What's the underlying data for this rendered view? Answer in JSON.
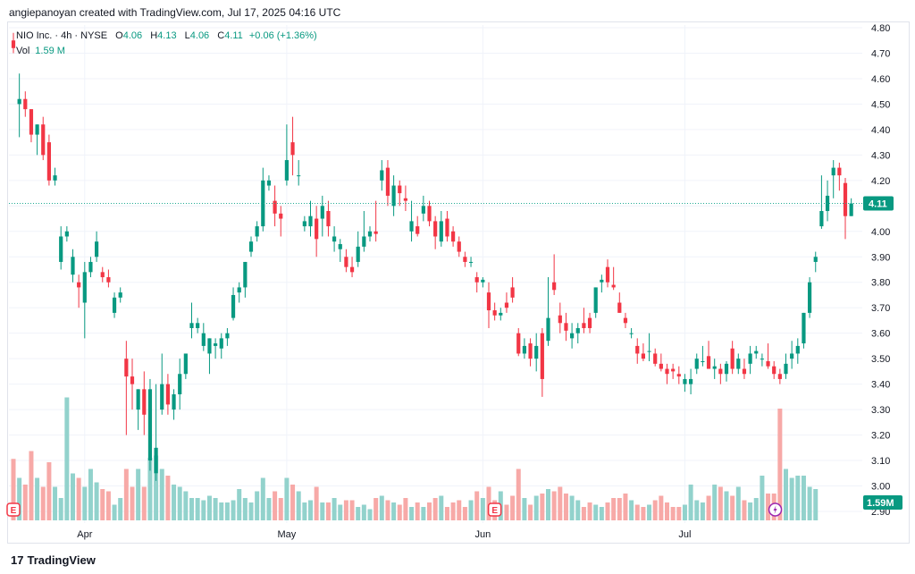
{
  "header": {
    "caption": "angiepanoyan created with TradingView.com, Jul 17, 2025 04:16 UTC"
  },
  "legend": {
    "symbol": "NIO Inc. · 4h · NYSE",
    "o_label": "O",
    "o_value": "4.06",
    "h_label": "H",
    "h_value": "4.13",
    "l_label": "L",
    "l_value": "4.06",
    "c_label": "C",
    "c_value": "4.11",
    "change": "+0.06 (+1.36%)",
    "vol_label": "Vol",
    "vol_value": "1.59 M"
  },
  "footer": {
    "brand": "TradingView",
    "logo": "17"
  },
  "colors": {
    "up": "#089981",
    "down": "#f23645",
    "vol_up": "#92d2cc",
    "vol_down": "#f7a9a7",
    "grid": "#f0f3fa",
    "axis_text": "#131722",
    "last_price_line": "#22ab94",
    "earnings": "#f23645",
    "bolt": "#9c27b0"
  },
  "chart_data": {
    "type": "candlestick",
    "symbol": "NIO",
    "timeframe": "4h",
    "exchange": "NYSE",
    "y_range": [
      2.9,
      4.8
    ],
    "y_ticks": [
      "4.80",
      "4.70",
      "4.60",
      "4.50",
      "4.40",
      "4.30",
      "4.20",
      "4.10",
      "4.00",
      "3.90",
      "3.80",
      "3.70",
      "3.60",
      "3.50",
      "3.40",
      "3.30",
      "3.20",
      "3.10",
      "3.00",
      "2.90"
    ],
    "x_labels": [
      {
        "label": "Apr",
        "index": 12
      },
      {
        "label": "May",
        "index": 46
      },
      {
        "label": "Jun",
        "index": 79
      },
      {
        "label": "Jul",
        "index": 113
      }
    ],
    "last_price": "4.11",
    "last_volume": "1.59M",
    "earnings_markers": [
      0,
      81
    ],
    "bolt_marker": 127,
    "candles": [
      [
        4.75,
        4.78,
        4.7,
        4.72
      ],
      [
        4.5,
        4.62,
        4.37,
        4.52
      ],
      [
        4.52,
        4.55,
        4.45,
        4.48
      ],
      [
        4.48,
        4.48,
        4.35,
        4.38
      ],
      [
        4.38,
        4.42,
        4.3,
        4.42
      ],
      [
        4.42,
        4.45,
        4.28,
        4.3
      ],
      [
        4.35,
        4.38,
        4.18,
        4.2
      ],
      [
        4.2,
        4.25,
        4.18,
        4.22
      ],
      [
        3.88,
        4.02,
        3.85,
        3.98
      ],
      [
        3.98,
        4.02,
        3.96,
        4.0
      ],
      [
        3.83,
        3.93,
        3.8,
        3.9
      ],
      [
        3.8,
        3.83,
        3.7,
        3.78
      ],
      [
        3.72,
        3.88,
        3.58,
        3.84
      ],
      [
        3.84,
        3.9,
        3.82,
        3.88
      ],
      [
        3.9,
        4.0,
        3.88,
        3.96
      ],
      [
        3.84,
        3.86,
        3.8,
        3.82
      ],
      [
        3.82,
        3.85,
        3.78,
        3.8
      ],
      [
        3.68,
        3.76,
        3.66,
        3.74
      ],
      [
        3.74,
        3.78,
        3.72,
        3.76
      ],
      [
        3.5,
        3.57,
        3.2,
        3.43
      ],
      [
        3.43,
        3.5,
        3.3,
        3.4
      ],
      [
        3.3,
        3.38,
        3.22,
        3.38
      ],
      [
        3.38,
        3.45,
        3.2,
        3.28
      ],
      [
        3.1,
        3.42,
        3.06,
        3.38
      ],
      [
        3.05,
        3.4,
        3.02,
        3.15
      ],
      [
        3.3,
        3.52,
        3.28,
        3.4
      ],
      [
        3.4,
        3.44,
        3.28,
        3.32
      ],
      [
        3.3,
        3.38,
        3.26,
        3.36
      ],
      [
        3.36,
        3.5,
        3.3,
        3.44
      ],
      [
        3.44,
        3.52,
        3.42,
        3.52
      ],
      [
        3.62,
        3.72,
        3.58,
        3.64
      ],
      [
        3.62,
        3.66,
        3.6,
        3.64
      ],
      [
        3.55,
        3.64,
        3.53,
        3.6
      ],
      [
        3.52,
        3.58,
        3.44,
        3.58
      ],
      [
        3.55,
        3.58,
        3.5,
        3.56
      ],
      [
        3.54,
        3.6,
        3.5,
        3.58
      ],
      [
        3.58,
        3.62,
        3.55,
        3.6
      ],
      [
        3.66,
        3.78,
        3.65,
        3.75
      ],
      [
        3.76,
        3.8,
        3.72,
        3.78
      ],
      [
        3.78,
        3.88,
        3.74,
        3.88
      ],
      [
        3.92,
        3.98,
        3.9,
        3.96
      ],
      [
        3.98,
        4.04,
        3.96,
        4.02
      ],
      [
        4.02,
        4.25,
        4.0,
        4.2
      ],
      [
        4.18,
        4.22,
        4.16,
        4.2
      ],
      [
        4.12,
        4.18,
        4.02,
        4.07
      ],
      [
        4.07,
        4.1,
        3.98,
        4.05
      ],
      [
        4.2,
        4.42,
        4.18,
        4.28
      ],
      [
        4.35,
        4.45,
        4.22,
        4.3
      ],
      [
        4.22,
        4.28,
        4.18,
        4.22
      ],
      [
        4.02,
        4.06,
        4.0,
        4.04
      ],
      [
        4.02,
        4.12,
        3.98,
        4.06
      ],
      [
        4.05,
        4.1,
        3.9,
        3.97
      ],
      [
        4.05,
        4.14,
        3.98,
        4.1
      ],
      [
        4.08,
        4.12,
        3.98,
        4.02
      ],
      [
        3.96,
        4.02,
        3.92,
        3.98
      ],
      [
        3.93,
        3.97,
        3.88,
        3.95
      ],
      [
        3.9,
        3.93,
        3.84,
        3.86
      ],
      [
        3.86,
        3.9,
        3.82,
        3.84
      ],
      [
        3.88,
        4.0,
        3.86,
        3.94
      ],
      [
        3.94,
        4.08,
        3.92,
        3.98
      ],
      [
        3.98,
        4.02,
        3.96,
        4.0
      ],
      [
        4.0,
        4.12,
        3.96,
        3.99
      ],
      [
        4.2,
        4.28,
        4.16,
        4.24
      ],
      [
        4.25,
        4.28,
        4.1,
        4.14
      ],
      [
        4.1,
        4.22,
        4.06,
        4.18
      ],
      [
        4.18,
        4.2,
        4.1,
        4.15
      ],
      [
        4.13,
        4.18,
        4.08,
        4.12
      ],
      [
        4.0,
        4.12,
        3.96,
        4.04
      ],
      [
        4.02,
        4.06,
        3.98,
        3.99
      ],
      [
        4.07,
        4.14,
        4.04,
        4.1
      ],
      [
        4.1,
        4.12,
        4.02,
        4.04
      ],
      [
        4.04,
        4.06,
        3.93,
        3.98
      ],
      [
        3.96,
        4.08,
        3.94,
        4.04
      ],
      [
        4.05,
        4.08,
        3.96,
        3.98
      ],
      [
        4.0,
        4.02,
        3.94,
        3.96
      ],
      [
        3.96,
        3.98,
        3.9,
        3.92
      ],
      [
        3.9,
        3.92,
        3.86,
        3.88
      ],
      [
        3.88,
        3.9,
        3.86,
        3.88
      ],
      [
        3.82,
        3.84,
        3.76,
        3.8
      ],
      [
        3.8,
        3.82,
        3.78,
        3.81
      ],
      [
        3.76,
        3.8,
        3.62,
        3.69
      ],
      [
        3.69,
        3.72,
        3.65,
        3.67
      ],
      [
        3.67,
        3.7,
        3.65,
        3.68
      ],
      [
        3.72,
        3.76,
        3.68,
        3.7
      ],
      [
        3.78,
        3.82,
        3.72,
        3.74
      ],
      [
        3.6,
        3.62,
        3.51,
        3.52
      ],
      [
        3.52,
        3.58,
        3.5,
        3.55
      ],
      [
        3.56,
        3.58,
        3.47,
        3.5
      ],
      [
        3.5,
        3.6,
        3.45,
        3.55
      ],
      [
        3.6,
        3.62,
        3.35,
        3.42
      ],
      [
        3.57,
        3.82,
        3.55,
        3.66
      ],
      [
        3.8,
        3.91,
        3.75,
        3.77
      ],
      [
        3.67,
        3.72,
        3.6,
        3.64
      ],
      [
        3.64,
        3.68,
        3.57,
        3.61
      ],
      [
        3.58,
        3.64,
        3.54,
        3.6
      ],
      [
        3.6,
        3.64,
        3.56,
        3.62
      ],
      [
        3.64,
        3.7,
        3.6,
        3.62
      ],
      [
        3.66,
        3.68,
        3.6,
        3.62
      ],
      [
        3.68,
        3.78,
        3.66,
        3.78
      ],
      [
        3.8,
        3.83,
        3.76,
        3.81
      ],
      [
        3.86,
        3.89,
        3.78,
        3.8
      ],
      [
        3.79,
        3.86,
        3.77,
        3.78
      ],
      [
        3.72,
        3.76,
        3.68,
        3.68
      ],
      [
        3.66,
        3.68,
        3.62,
        3.64
      ],
      [
        3.6,
        3.62,
        3.58,
        3.6
      ],
      [
        3.55,
        3.58,
        3.48,
        3.52
      ],
      [
        3.52,
        3.56,
        3.49,
        3.5
      ],
      [
        3.53,
        3.6,
        3.49,
        3.53
      ],
      [
        3.52,
        3.54,
        3.47,
        3.48
      ],
      [
        3.48,
        3.52,
        3.45,
        3.46
      ],
      [
        3.46,
        3.48,
        3.4,
        3.44
      ],
      [
        3.46,
        3.48,
        3.42,
        3.45
      ],
      [
        3.44,
        3.47,
        3.4,
        3.43
      ],
      [
        3.4,
        3.44,
        3.37,
        3.42
      ],
      [
        3.4,
        3.46,
        3.36,
        3.42
      ],
      [
        3.46,
        3.52,
        3.44,
        3.5
      ],
      [
        3.49,
        3.55,
        3.47,
        3.49
      ],
      [
        3.51,
        3.57,
        3.46,
        3.46
      ],
      [
        3.46,
        3.5,
        3.42,
        3.47
      ],
      [
        3.46,
        3.48,
        3.4,
        3.44
      ],
      [
        3.44,
        3.49,
        3.41,
        3.48
      ],
      [
        3.54,
        3.57,
        3.44,
        3.46
      ],
      [
        3.46,
        3.52,
        3.44,
        3.5
      ],
      [
        3.46,
        3.5,
        3.42,
        3.44
      ],
      [
        3.48,
        3.55,
        3.44,
        3.52
      ],
      [
        3.52,
        3.55,
        3.5,
        3.53
      ],
      [
        3.5,
        3.52,
        3.47,
        3.5
      ],
      [
        3.49,
        3.56,
        3.46,
        3.47
      ],
      [
        3.47,
        3.49,
        3.42,
        3.44
      ],
      [
        3.44,
        3.46,
        3.4,
        3.42
      ],
      [
        3.44,
        3.52,
        3.42,
        3.48
      ],
      [
        3.5,
        3.57,
        3.46,
        3.52
      ],
      [
        3.52,
        3.58,
        3.48,
        3.55
      ],
      [
        3.56,
        3.68,
        3.54,
        3.68
      ],
      [
        3.68,
        3.82,
        3.66,
        3.8
      ],
      [
        3.88,
        3.92,
        3.84,
        3.9
      ],
      [
        4.02,
        4.22,
        4.01,
        4.08
      ],
      [
        4.08,
        4.2,
        4.04,
        4.14
      ],
      [
        4.22,
        4.28,
        4.13,
        4.25
      ],
      [
        4.25,
        4.27,
        4.16,
        4.22
      ],
      [
        4.19,
        4.21,
        3.97,
        4.06
      ],
      [
        4.06,
        4.13,
        4.06,
        4.11
      ]
    ],
    "volumes": [
      0.55,
      0.38,
      0.32,
      0.62,
      0.38,
      0.3,
      0.52,
      0.3,
      0.2,
      1.1,
      0.42,
      0.38,
      0.3,
      0.46,
      0.34,
      0.28,
      0.26,
      0.14,
      0.2,
      0.46,
      0.3,
      0.46,
      0.3,
      0.56,
      0.58,
      0.46,
      0.4,
      0.32,
      0.3,
      0.26,
      0.2,
      0.2,
      0.18,
      0.22,
      0.2,
      0.16,
      0.16,
      0.18,
      0.28,
      0.2,
      0.16,
      0.26,
      0.38,
      0.2,
      0.26,
      0.2,
      0.38,
      0.32,
      0.26,
      0.16,
      0.18,
      0.3,
      0.16,
      0.16,
      0.2,
      0.14,
      0.18,
      0.18,
      0.12,
      0.14,
      0.1,
      0.2,
      0.22,
      0.18,
      0.16,
      0.14,
      0.2,
      0.12,
      0.16,
      0.12,
      0.16,
      0.2,
      0.22,
      0.12,
      0.16,
      0.18,
      0.12,
      0.18,
      0.26,
      0.2,
      0.3,
      0.18,
      0.26,
      0.14,
      0.22,
      0.46,
      0.2,
      0.14,
      0.22,
      0.24,
      0.28,
      0.26,
      0.3,
      0.24,
      0.22,
      0.18,
      0.12,
      0.16,
      0.14,
      0.12,
      0.16,
      0.2,
      0.2,
      0.24,
      0.18,
      0.14,
      0.12,
      0.14,
      0.18,
      0.22,
      0.16,
      0.12,
      0.12,
      0.14,
      0.32,
      0.18,
      0.16,
      0.22,
      0.32,
      0.3,
      0.26,
      0.22,
      0.3,
      0.18,
      0.16,
      0.2,
      0.4,
      0.24,
      0.24,
      1.0,
      0.46,
      0.38,
      0.4,
      0.4,
      0.3,
      0.28
    ]
  }
}
